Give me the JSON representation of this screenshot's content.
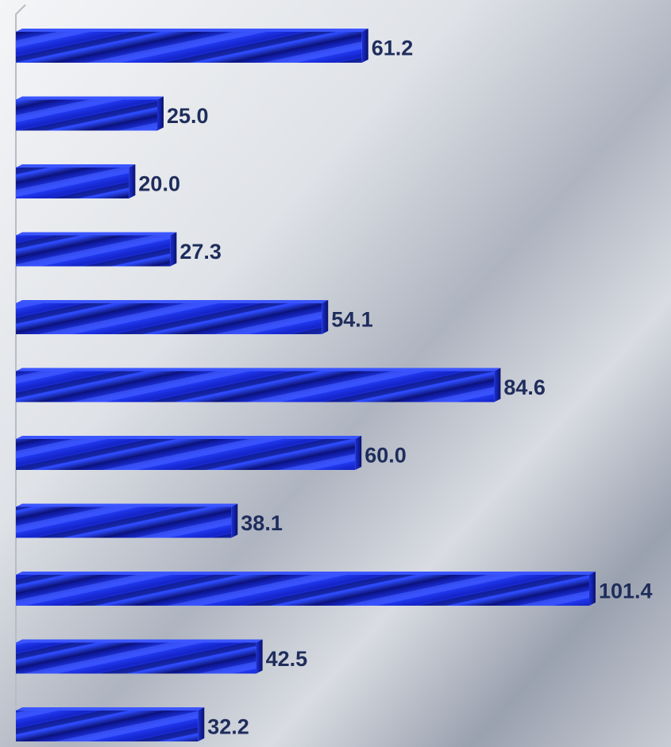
{
  "chart_data": {
    "type": "bar",
    "orientation": "horizontal",
    "values": [
      61.2,
      25.0,
      20.0,
      27.3,
      54.1,
      84.6,
      60.0,
      38.1,
      101.4,
      42.5,
      32.2
    ],
    "labels": [
      "61.2",
      "25.0",
      "20.0",
      "27.3",
      "54.1",
      "84.6",
      "60.0",
      "38.1",
      "101.4",
      "42.5",
      "32.2"
    ],
    "xlim": [
      0,
      101.4
    ],
    "grid": false,
    "colors": {
      "bar": "#1a2fe0",
      "bar_dark": "#0a0f6e",
      "bar_stripe": "#3a55ff",
      "label": "#1f2d5c",
      "axis": "#b8bcc4",
      "background_light": "#eef0f3",
      "background_dark": "#8a92a2"
    }
  }
}
